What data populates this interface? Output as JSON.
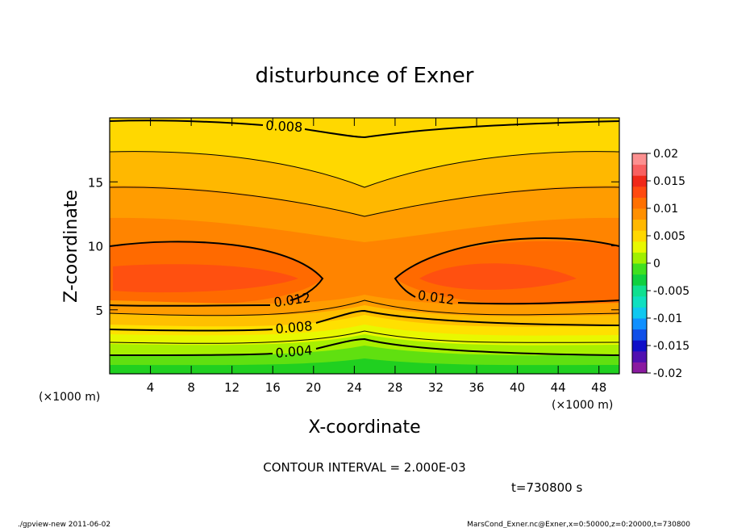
{
  "chart_data": {
    "type": "heatmap",
    "title": "disturbunce of Exner",
    "xlabel": "X-coordinate",
    "ylabel": "Z-coordinate",
    "x_unit": "(×1000 m)",
    "x_unit_right": "(×1000 m)",
    "y_unit": "(×1000 m)",
    "xlim": [
      0,
      50
    ],
    "ylim": [
      0,
      20
    ],
    "x_ticks": [
      "4",
      "8",
      "12",
      "16",
      "20",
      "24",
      "28",
      "32",
      "36",
      "40",
      "44",
      "48"
    ],
    "y_ticks": [
      "5",
      "10",
      "15"
    ],
    "contour_interval_label": "CONTOUR INTERVAL = 2.000E-03",
    "time_label": "t=730800 s",
    "contour_labels": [
      "0.008",
      "0.012",
      "0.012",
      "0.008",
      "0.004"
    ],
    "colorbar": {
      "labels": [
        "0.02",
        "0.015",
        "0.01",
        "0.005",
        "0",
        "-0.005",
        "-0.01",
        "-0.015",
        "-0.02"
      ],
      "range": [
        -0.02,
        0.02
      ],
      "colors": [
        "#8a1aa0",
        "#5010b0",
        "#1010c8",
        "#1050e8",
        "#1090ff",
        "#10c8f0",
        "#10e0c0",
        "#10e090",
        "#10d040",
        "#40e020",
        "#a0f000",
        "#e8f800",
        "#ffd800",
        "#ffb800",
        "#ff9000",
        "#ff7000",
        "#ff4a10",
        "#f02818",
        "#f86060",
        "#fc9090"
      ]
    },
    "field_description_values": {
      "core_max_left": {
        "x": 6,
        "z": 7.5,
        "value": 0.0145
      },
      "core_max_right": {
        "x": 38,
        "z": 7.5,
        "value": 0.0145
      },
      "surface_min": {
        "x": 24,
        "z": 0,
        "value": 0.0
      }
    }
  },
  "footer": {
    "left": "./gpview-new   2011-06-02",
    "right": "MarsCond_Exner.nc@Exner,x=0:50000,z=0:20000,t=730800"
  }
}
